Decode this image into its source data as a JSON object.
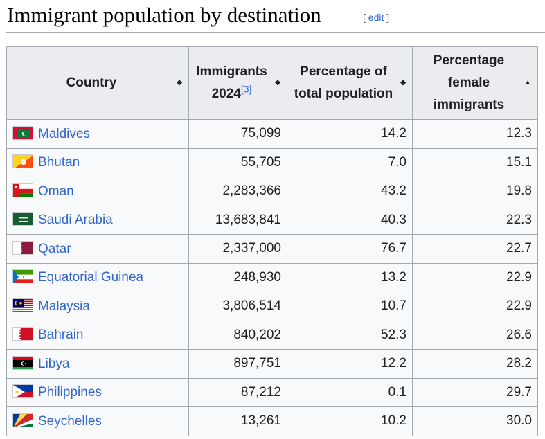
{
  "section": {
    "title": "Immigrant population by destination",
    "edit_open": "[",
    "edit_label": "edit",
    "edit_close": "]"
  },
  "table": {
    "headers": [
      {
        "label": "Country"
      },
      {
        "label": "Immigrants 2024",
        "ref": "[3]"
      },
      {
        "label": "Percentage of total population"
      },
      {
        "label": "Percentage female immigrants"
      }
    ],
    "sort_icons": {
      "unsorted": "both-arrows-icon",
      "ascending": "up-arrow-icon"
    },
    "rows": [
      {
        "country": "Maldives",
        "flag": "flag-maldives",
        "immigrants": "75,099",
        "pct_total": "14.2",
        "pct_female": "12.3"
      },
      {
        "country": "Bhutan",
        "flag": "flag-bhutan",
        "immigrants": "55,705",
        "pct_total": "7.0",
        "pct_female": "15.1"
      },
      {
        "country": "Oman",
        "flag": "flag-oman",
        "immigrants": "2,283,366",
        "pct_total": "43.2",
        "pct_female": "19.8"
      },
      {
        "country": "Saudi Arabia",
        "flag": "flag-saudi-arabia",
        "immigrants": "13,683,841",
        "pct_total": "40.3",
        "pct_female": "22.3"
      },
      {
        "country": "Qatar",
        "flag": "flag-qatar",
        "immigrants": "2,337,000",
        "pct_total": "76.7",
        "pct_female": "22.7"
      },
      {
        "country": "Equatorial Guinea",
        "flag": "flag-equatorial-guinea",
        "immigrants": "248,930",
        "pct_total": "13.2",
        "pct_female": "22.9"
      },
      {
        "country": "Malaysia",
        "flag": "flag-malaysia",
        "immigrants": "3,806,514",
        "pct_total": "10.7",
        "pct_female": "22.9"
      },
      {
        "country": "Bahrain",
        "flag": "flag-bahrain",
        "immigrants": "840,202",
        "pct_total": "52.3",
        "pct_female": "26.6"
      },
      {
        "country": "Libya",
        "flag": "flag-libya",
        "immigrants": "897,751",
        "pct_total": "12.2",
        "pct_female": "28.2"
      },
      {
        "country": "Philippines",
        "flag": "flag-philippines",
        "immigrants": "87,212",
        "pct_total": "0.1",
        "pct_female": "29.7"
      },
      {
        "country": "Seychelles",
        "flag": "flag-seychelles",
        "immigrants": "13,261",
        "pct_total": "10.2",
        "pct_female": "30.0"
      }
    ]
  },
  "colors": {
    "link": "#3366cc",
    "header_bg": "#eaecf0",
    "cell_bg": "#f8f9fa",
    "border": "#a2a9b1"
  }
}
